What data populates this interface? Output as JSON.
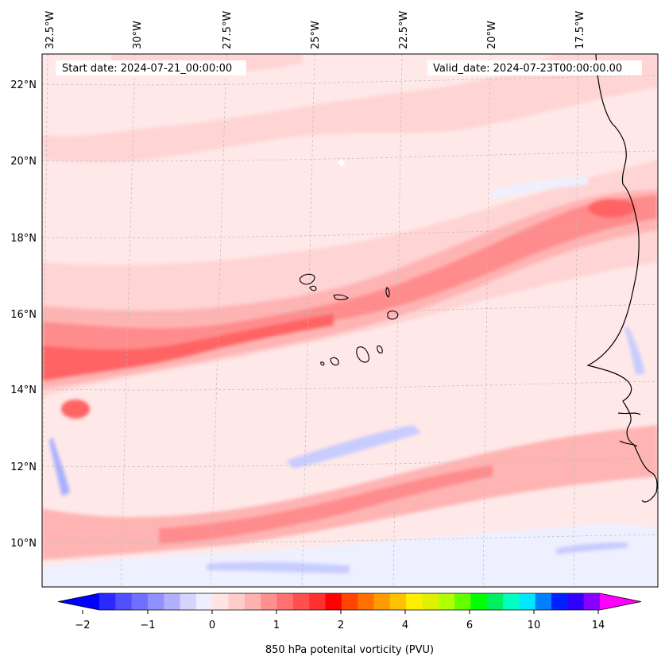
{
  "header": {
    "start_label": "Start date: 2024-07-21_00:00:00",
    "valid_label": "Valid_date: 2024-07-23T00:00:00.00"
  },
  "map": {
    "lon_labels": [
      "32.5°W",
      "30°W",
      "27.5°W",
      "25°W",
      "22.5°W",
      "20°W",
      "17.5°W"
    ],
    "lat_labels": [
      "22°N",
      "20°N",
      "18°N",
      "16°N",
      "14°N",
      "12°N",
      "10°N"
    ],
    "field": "850 hPa potential vorticity",
    "colors": {
      "background": "#ffe8e8",
      "light_pink": "#ffd4d4",
      "pink": "#ffb4b4",
      "salmon": "#ff8c8c",
      "red": "#ff6464",
      "light_blue": "#eef0ff",
      "blue": "#c8ccff",
      "mid_blue": "#a8b0ff",
      "coast": "#000000",
      "grid": "#bbbbbb"
    }
  },
  "colorbar": {
    "label": "850 hPa potenital vorticity (PVU)",
    "tick_labels": [
      "−2",
      "−1",
      "0",
      "1",
      "2",
      "4",
      "6",
      "10",
      "14"
    ],
    "colors": [
      "#0000ff",
      "#2a2aff",
      "#5050ff",
      "#7070ff",
      "#9090ff",
      "#b0b0ff",
      "#d4d4ff",
      "#eeeeff",
      "#ffe4e4",
      "#ffcccc",
      "#ffb0b0",
      "#ff9090",
      "#ff7070",
      "#ff5050",
      "#ff3030",
      "#ff0000",
      "#ff4500",
      "#ff7000",
      "#ff9a00",
      "#ffc200",
      "#ffee00",
      "#e0f000",
      "#b0ff00",
      "#66ff00",
      "#00ff00",
      "#00f060",
      "#00ffc0",
      "#00e8ff",
      "#0080ff",
      "#0020ff",
      "#3000ff",
      "#8800ff",
      "#ff00ff"
    ]
  }
}
